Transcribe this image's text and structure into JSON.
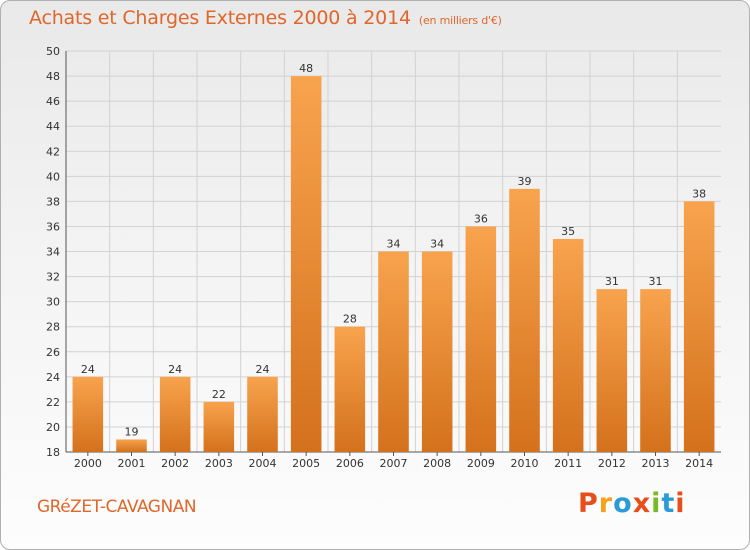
{
  "header": {
    "title": "Achats et Charges Externes 2000 à 2014",
    "subtitle": "(en milliers d'€)"
  },
  "footer": {
    "commune": "GRéZET-CAVAGNAN",
    "logo_text": "Proxiti",
    "logo_colors": [
      "#e84e1b",
      "#f7a21b",
      "#2b9bd8",
      "#e84e1b",
      "#79b928",
      "#2b9bd8",
      "#e84e1b"
    ]
  },
  "chart_data": {
    "type": "bar",
    "title": "Achats et Charges Externes 2000 à 2014",
    "subtitle": "(en milliers d'€)",
    "xlabel": "",
    "ylabel": "",
    "categories": [
      "2000",
      "2001",
      "2002",
      "2003",
      "2004",
      "2005",
      "2006",
      "2007",
      "2008",
      "2009",
      "2010",
      "2011",
      "2012",
      "2013",
      "2014"
    ],
    "values": [
      24,
      19,
      24,
      22,
      24,
      48,
      28,
      34,
      34,
      36,
      39,
      35,
      31,
      31,
      38
    ],
    "ylim": [
      18,
      50
    ],
    "yticks": [
      18,
      20,
      22,
      24,
      26,
      28,
      30,
      32,
      34,
      36,
      38,
      40,
      42,
      44,
      46,
      48,
      50
    ],
    "grid": true,
    "bar_color_light": "#f8a34e",
    "bar_color_dark": "#d4711c"
  }
}
